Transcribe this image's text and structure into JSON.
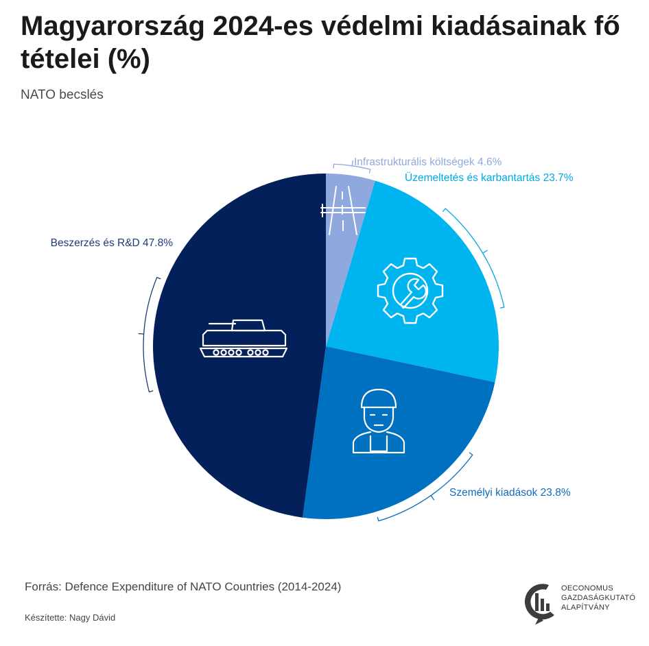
{
  "title": "Magyarország 2024-es védelmi kiadásainak fő tételei (%)",
  "subtitle": "NATO becslés",
  "source": "Forrás: Defence Expenditure of NATO Countries (2014-2024)",
  "author": "Készítette: Nagy Dávid",
  "logo": {
    "line1": "OECONOMUS",
    "line2": "GAZDASÁGKUTATÓ",
    "line3": "ALAPÍTVÁNY"
  },
  "chart_data": {
    "type": "pie",
    "unit": "%",
    "slices": [
      {
        "name": "Infrastrukturális költségek",
        "value": 4.6,
        "label": "Infrastrukturális költségek 4.6%",
        "color": "#8fa9de",
        "label_color": "#8fa9de",
        "icon": "road-icon"
      },
      {
        "name": "Üzemeltetés és karbantartás",
        "value": 23.7,
        "label": "Üzemeltetés és karbantartás 23.7%",
        "color": "#00b4f0",
        "label_color": "#00a8e8",
        "icon": "gear-wrench-icon"
      },
      {
        "name": "Személyi kiadások",
        "value": 23.8,
        "label": "Személyi kiadások 23.8%",
        "color": "#0070c0",
        "label_color": "#0a6cbf",
        "icon": "soldier-icon"
      },
      {
        "name": "Beszerzés és R&D",
        "value": 47.8,
        "label": "Beszerzés és R&D 47.8%",
        "color": "#03205a",
        "label_color": "#1e3a78",
        "icon": "tank-icon"
      }
    ]
  }
}
